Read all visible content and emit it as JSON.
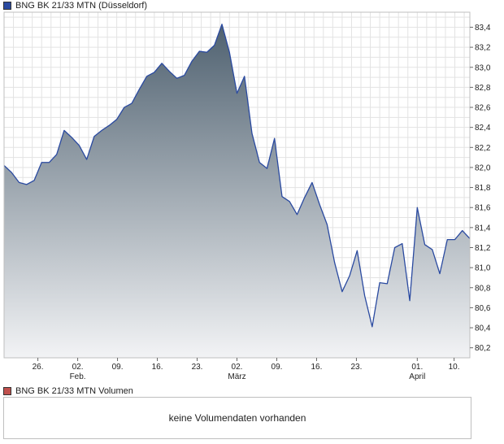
{
  "price_legend": {
    "label": "BNG BK 21/33 MTN (Düsseldorf)",
    "color": "#2a4aa0"
  },
  "volume_legend": {
    "label": "BNG BK 21/33 MTN Volumen",
    "color": "#c0504d"
  },
  "volume_panel": {
    "message": "keine Volumendaten vorhanden"
  },
  "chart_data": {
    "type": "area",
    "series": [
      {
        "values": [
          [
            0,
            82.02
          ],
          [
            1,
            81.95
          ],
          [
            2,
            81.85
          ],
          [
            3,
            81.83
          ],
          [
            4,
            81.87
          ],
          [
            5,
            82.05
          ],
          [
            6,
            82.05
          ],
          [
            7,
            82.13
          ],
          [
            8,
            82.37
          ],
          [
            9,
            82.3
          ],
          [
            10,
            82.22
          ],
          [
            11,
            82.08
          ],
          [
            12,
            82.31
          ],
          [
            13,
            82.37
          ],
          [
            14,
            82.42
          ],
          [
            15,
            82.48
          ],
          [
            16,
            82.6
          ],
          [
            17,
            82.64
          ],
          [
            18,
            82.78
          ],
          [
            19,
            82.91
          ],
          [
            20,
            82.95
          ],
          [
            21,
            83.04
          ],
          [
            22,
            82.96
          ],
          [
            23,
            82.89
          ],
          [
            24,
            82.92
          ],
          [
            25,
            83.06
          ],
          [
            26,
            83.16
          ],
          [
            27,
            83.15
          ],
          [
            28,
            83.22
          ],
          [
            29,
            83.43
          ],
          [
            30,
            83.15
          ],
          [
            31,
            82.74
          ],
          [
            32,
            82.91
          ],
          [
            33,
            82.34
          ],
          [
            34,
            82.05
          ],
          [
            35,
            81.99
          ],
          [
            36,
            82.29
          ],
          [
            37,
            81.71
          ],
          [
            38,
            81.66
          ],
          [
            39,
            81.53
          ],
          [
            40,
            81.7
          ],
          [
            41,
            81.85
          ],
          [
            42,
            81.63
          ],
          [
            43,
            81.43
          ],
          [
            44,
            81.05
          ],
          [
            45,
            80.76
          ],
          [
            46,
            80.92
          ],
          [
            47,
            81.17
          ],
          [
            48,
            80.72
          ],
          [
            49,
            80.41
          ],
          [
            50,
            80.85
          ],
          [
            51,
            80.84
          ],
          [
            52,
            81.2
          ],
          [
            53,
            81.24
          ],
          [
            54,
            80.67
          ],
          [
            55,
            81.6
          ],
          [
            56,
            81.23
          ],
          [
            57,
            81.18
          ],
          [
            58,
            80.94
          ],
          [
            59,
            81.28
          ],
          [
            60,
            81.28
          ],
          [
            61,
            81.37
          ],
          [
            62,
            81.29
          ]
        ]
      }
    ],
    "ylim": [
      80.1,
      83.55
    ],
    "yticks": [
      80.2,
      80.4,
      80.6,
      80.8,
      81.0,
      81.2,
      81.4,
      81.6,
      81.8,
      82.0,
      82.2,
      82.4,
      82.6,
      82.8,
      83.0,
      83.2,
      83.4
    ],
    "ytick_labels": [
      "80,2",
      "80,4",
      "80,6",
      "80,8",
      "81,0",
      "81,2",
      "81,4",
      "81,6",
      "81,8",
      "82,0",
      "82,2",
      "82,4",
      "82,6",
      "82,8",
      "83,0",
      "83,2",
      "83,4"
    ],
    "xlim": [
      0,
      62
    ],
    "xticks": [
      {
        "x": 4.5,
        "day": "26.",
        "month": ""
      },
      {
        "x": 9.8,
        "day": "02.",
        "month": "Feb."
      },
      {
        "x": 15.1,
        "day": "09.",
        "month": ""
      },
      {
        "x": 20.4,
        "day": "16.",
        "month": ""
      },
      {
        "x": 25.7,
        "day": "23.",
        "month": ""
      },
      {
        "x": 31.0,
        "day": "02.",
        "month": "März"
      },
      {
        "x": 36.3,
        "day": "09.",
        "month": ""
      },
      {
        "x": 41.6,
        "day": "16.",
        "month": ""
      },
      {
        "x": 46.9,
        "day": "23.",
        "month": ""
      },
      {
        "x": 55.0,
        "day": "01.",
        "month": "April"
      },
      {
        "x": 59.9,
        "day": "10.",
        "month": ""
      }
    ],
    "grid": true,
    "line_color": "#2a4aa0",
    "fill_top": "#4f6170",
    "fill_bottom": "#f2f3f5"
  }
}
